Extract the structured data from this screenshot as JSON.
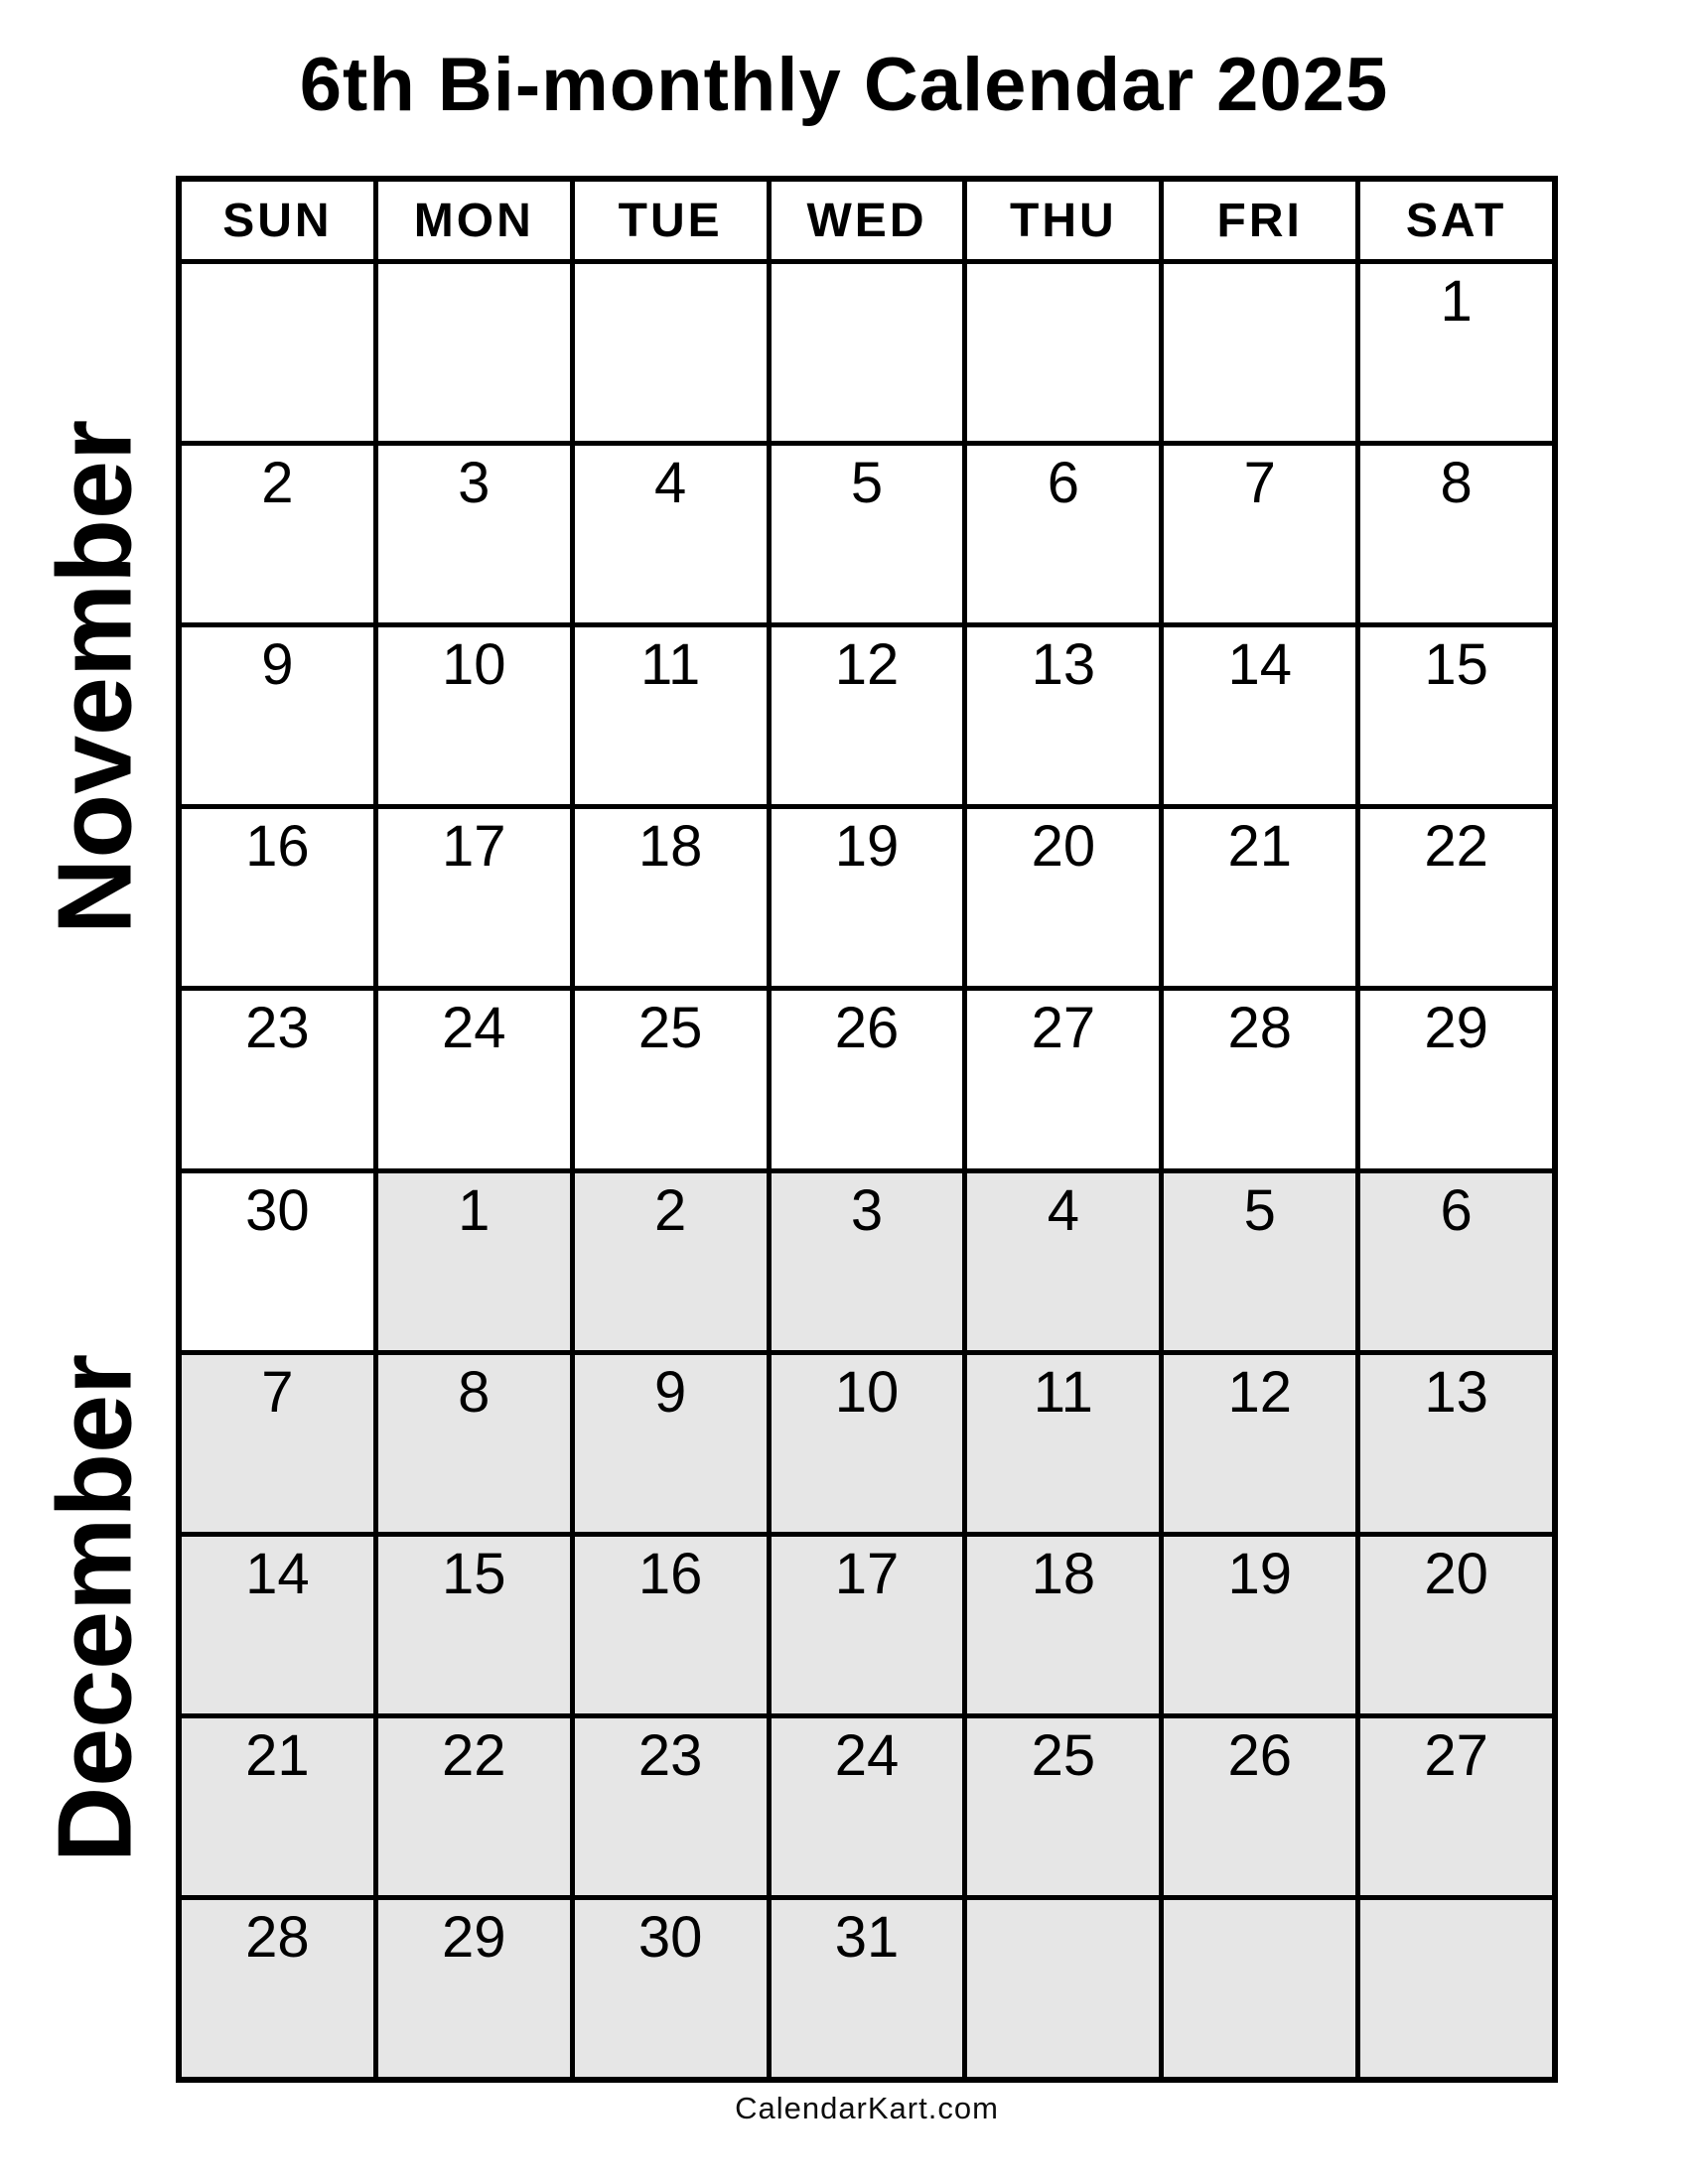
{
  "title": "6th Bi-monthly Calendar 2025",
  "weekdays": [
    "SUN",
    "MON",
    "TUE",
    "WED",
    "THU",
    "FRI",
    "SAT"
  ],
  "months": [
    {
      "name": "November"
    },
    {
      "name": "December"
    }
  ],
  "footer": "CalendarKart.com",
  "colors": {
    "november_cell": "#ffffff",
    "december_cell": "#e6e6e6",
    "grid_line": "#000000"
  },
  "calendar_rows": [
    {
      "cells": [
        {
          "day": "",
          "month": "november"
        },
        {
          "day": "",
          "month": "november"
        },
        {
          "day": "",
          "month": "november"
        },
        {
          "day": "",
          "month": "november"
        },
        {
          "day": "",
          "month": "november"
        },
        {
          "day": "",
          "month": "november"
        },
        {
          "day": "1",
          "month": "november"
        }
      ]
    },
    {
      "cells": [
        {
          "day": "2",
          "month": "november"
        },
        {
          "day": "3",
          "month": "november"
        },
        {
          "day": "4",
          "month": "november"
        },
        {
          "day": "5",
          "month": "november"
        },
        {
          "day": "6",
          "month": "november"
        },
        {
          "day": "7",
          "month": "november"
        },
        {
          "day": "8",
          "month": "november"
        }
      ]
    },
    {
      "cells": [
        {
          "day": "9",
          "month": "november"
        },
        {
          "day": "10",
          "month": "november"
        },
        {
          "day": "11",
          "month": "november"
        },
        {
          "day": "12",
          "month": "november"
        },
        {
          "day": "13",
          "month": "november"
        },
        {
          "day": "14",
          "month": "november"
        },
        {
          "day": "15",
          "month": "november"
        }
      ]
    },
    {
      "cells": [
        {
          "day": "16",
          "month": "november"
        },
        {
          "day": "17",
          "month": "november"
        },
        {
          "day": "18",
          "month": "november"
        },
        {
          "day": "19",
          "month": "november"
        },
        {
          "day": "20",
          "month": "november"
        },
        {
          "day": "21",
          "month": "november"
        },
        {
          "day": "22",
          "month": "november"
        }
      ]
    },
    {
      "cells": [
        {
          "day": "23",
          "month": "november"
        },
        {
          "day": "24",
          "month": "november"
        },
        {
          "day": "25",
          "month": "november"
        },
        {
          "day": "26",
          "month": "november"
        },
        {
          "day": "27",
          "month": "november"
        },
        {
          "day": "28",
          "month": "november"
        },
        {
          "day": "29",
          "month": "november"
        }
      ]
    },
    {
      "cells": [
        {
          "day": "30",
          "month": "november"
        },
        {
          "day": "1",
          "month": "december"
        },
        {
          "day": "2",
          "month": "december"
        },
        {
          "day": "3",
          "month": "december"
        },
        {
          "day": "4",
          "month": "december"
        },
        {
          "day": "5",
          "month": "december"
        },
        {
          "day": "6",
          "month": "december"
        }
      ]
    },
    {
      "cells": [
        {
          "day": "7",
          "month": "december"
        },
        {
          "day": "8",
          "month": "december"
        },
        {
          "day": "9",
          "month": "december"
        },
        {
          "day": "10",
          "month": "december"
        },
        {
          "day": "11",
          "month": "december"
        },
        {
          "day": "12",
          "month": "december"
        },
        {
          "day": "13",
          "month": "december"
        }
      ]
    },
    {
      "cells": [
        {
          "day": "14",
          "month": "december"
        },
        {
          "day": "15",
          "month": "december"
        },
        {
          "day": "16",
          "month": "december"
        },
        {
          "day": "17",
          "month": "december"
        },
        {
          "day": "18",
          "month": "december"
        },
        {
          "day": "19",
          "month": "december"
        },
        {
          "day": "20",
          "month": "december"
        }
      ]
    },
    {
      "cells": [
        {
          "day": "21",
          "month": "december"
        },
        {
          "day": "22",
          "month": "december"
        },
        {
          "day": "23",
          "month": "december"
        },
        {
          "day": "24",
          "month": "december"
        },
        {
          "day": "25",
          "month": "december"
        },
        {
          "day": "26",
          "month": "december"
        },
        {
          "day": "27",
          "month": "december"
        }
      ]
    },
    {
      "cells": [
        {
          "day": "28",
          "month": "december"
        },
        {
          "day": "29",
          "month": "december"
        },
        {
          "day": "30",
          "month": "december"
        },
        {
          "day": "31",
          "month": "december"
        },
        {
          "day": "",
          "month": "december"
        },
        {
          "day": "",
          "month": "december"
        },
        {
          "day": "",
          "month": "december"
        }
      ]
    }
  ]
}
